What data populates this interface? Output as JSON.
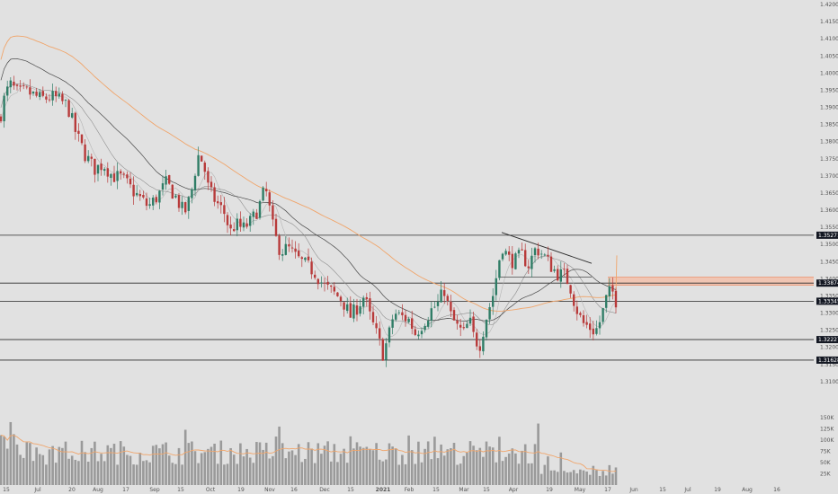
{
  "chart_data": {
    "type": "candlestick",
    "title": "",
    "ylabel": "",
    "xlabel": "",
    "price_axis": {
      "ylim": [
        1.305,
        1.42
      ],
      "ticks": [
        "1.42000",
        "1.41500",
        "1.41000",
        "1.40500",
        "1.40000",
        "1.39500",
        "1.39000",
        "1.38500",
        "1.38000",
        "1.37500",
        "1.37000",
        "1.36500",
        "1.36000",
        "1.35500",
        "1.35000",
        "1.34500",
        "1.34000",
        "1.33500",
        "1.33000",
        "1.32500",
        "1.32000",
        "1.31500",
        "1.31000"
      ]
    },
    "volume_axis": {
      "ylim": [
        0,
        170000
      ],
      "ticks": [
        "150K",
        "125K",
        "100K",
        "75K",
        "50K",
        "25K"
      ],
      "tick_values": [
        150000,
        125000,
        100000,
        75000,
        50000,
        25000
      ]
    },
    "time_axis": {
      "ticks": [
        "15",
        "Jul",
        "20",
        "Aug",
        "17",
        "Sep",
        "15",
        "Oct",
        "19",
        "Nov",
        "16",
        "Dec",
        "15",
        "2021",
        "Feb",
        "15",
        "Mar",
        "15",
        "Apr",
        "19",
        "May",
        "17",
        "Jun",
        "15",
        "Jul",
        "19",
        "Aug",
        "16"
      ],
      "bold_ticks": [
        "2021"
      ]
    },
    "levels": [
      {
        "price": 1.35271,
        "label": "1.35271"
      },
      {
        "price": 1.33874,
        "label": "1.33874"
      },
      {
        "price": 1.33345,
        "label": "1.33345"
      },
      {
        "price": 1.32227,
        "label": "1.32227"
      },
      {
        "price": 1.31628,
        "label": "1.31628"
      }
    ],
    "resistance_zone": [
      1.3381,
      1.3405
    ],
    "trendline": {
      "from": [
        "Mar",
        1.3535
      ],
      "to": [
        "Apr-end",
        1.3445
      ]
    },
    "moving_averages": [
      {
        "period": 200,
        "color": "#f0a56b"
      },
      {
        "period": 100,
        "color": "#4a4a4a"
      },
      {
        "period": 50,
        "color": "#8a8a8a"
      },
      {
        "period": 20,
        "color": "#aaaaaa"
      }
    ],
    "colors": {
      "up": "#2f7d66",
      "down": "#b83a3a",
      "volume": "#9a9a9a",
      "volume_ma": "#f0a56b",
      "level_tag": "#131722"
    }
  }
}
